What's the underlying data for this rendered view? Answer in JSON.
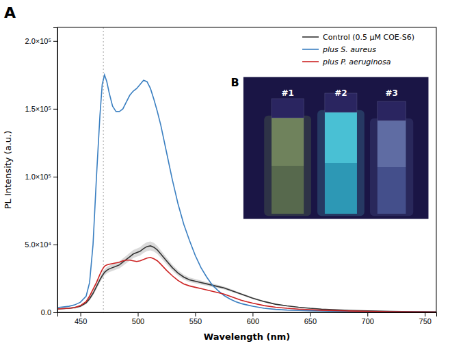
{
  "chart_data": {
    "type": "line",
    "xlabel": "Wavelength (nm)",
    "ylabel": "PL Intensity (a.u.)",
    "xlim": [
      430,
      760
    ],
    "ylim": [
      0,
      210000
    ],
    "xticks": [
      450,
      500,
      550,
      600,
      650,
      700,
      750
    ],
    "yticks": [
      {
        "value": 0,
        "label": "0.0"
      },
      {
        "value": 50000,
        "label": "5.0×10⁴"
      },
      {
        "value": 100000,
        "label": "1.0×10⁵"
      },
      {
        "value": 150000,
        "label": "1.5×10⁵"
      },
      {
        "value": 200000,
        "label": "2.0×10⁵"
      }
    ],
    "grid": false,
    "legend": "upper right",
    "vline_x": 470,
    "x": [
      430,
      440,
      445,
      450,
      455,
      458,
      461,
      464,
      467,
      469,
      471,
      473,
      475,
      478,
      481,
      484,
      487,
      490,
      493,
      496,
      499,
      502,
      505,
      508,
      511,
      514,
      517,
      520,
      525,
      530,
      535,
      540,
      545,
      550,
      555,
      560,
      565,
      570,
      575,
      580,
      585,
      590,
      595,
      600,
      610,
      620,
      630,
      640,
      650,
      660,
      680,
      700,
      720,
      740,
      760
    ],
    "series": [
      {
        "name": "Control (0.5 μM COE-S6)",
        "color": "#333333",
        "values": [
          2500,
          3000,
          3500,
          4500,
          7000,
          10000,
          14000,
          19000,
          24000,
          27000,
          29500,
          31000,
          32000,
          33000,
          34000,
          35000,
          37000,
          39000,
          41000,
          43000,
          44000,
          45000,
          47000,
          48500,
          49000,
          48000,
          46000,
          43000,
          38000,
          33000,
          29000,
          26000,
          24000,
          23000,
          22000,
          21000,
          20000,
          19000,
          18000,
          16500,
          15000,
          13500,
          12000,
          10500,
          8000,
          6000,
          4800,
          3800,
          3000,
          2400,
          1600,
          1100,
          750,
          500,
          300
        ],
        "errors": [
          500,
          600,
          700,
          800,
          1000,
          1200,
          1500,
          1800,
          2000,
          2200,
          2300,
          2400,
          2400,
          2500,
          2500,
          2600,
          2700,
          2800,
          2900,
          3000,
          3000,
          3100,
          3200,
          3300,
          3300,
          3200,
          3000,
          2800,
          2500,
          2200,
          2000,
          1800,
          1700,
          1600,
          1500,
          1400,
          1300,
          1200,
          1100,
          1000,
          900,
          800,
          700,
          600,
          500,
          400,
          300,
          250,
          200,
          150,
          100,
          80,
          60,
          40,
          20
        ]
      },
      {
        "name": "plus S. aureus",
        "color": "#3a7fc1",
        "values": [
          3500,
          4500,
          5500,
          7500,
          12000,
          22000,
          50000,
          100000,
          145000,
          168000,
          175000,
          170000,
          162000,
          152000,
          148000,
          148000,
          150000,
          155000,
          160000,
          163000,
          165000,
          168000,
          171000,
          170000,
          165000,
          157000,
          148000,
          138000,
          118000,
          98000,
          80000,
          65000,
          53000,
          42000,
          33000,
          26000,
          20000,
          16000,
          12500,
          10000,
          8000,
          6500,
          5500,
          4500,
          3000,
          2200,
          1700,
          1400,
          1200,
          1000,
          700,
          500,
          400,
          300,
          200
        ]
      },
      {
        "name": "plus P. aeruginosa",
        "color": "#cc2222",
        "values": [
          2500,
          3000,
          3500,
          5000,
          8000,
          12000,
          17000,
          22000,
          28000,
          31500,
          34000,
          35000,
          35500,
          36000,
          36500,
          37000,
          38000,
          38500,
          38500,
          38000,
          37500,
          38000,
          39000,
          40000,
          40500,
          39500,
          38000,
          35500,
          31000,
          27000,
          23500,
          21000,
          19500,
          18500,
          17500,
          16500,
          15500,
          14500,
          13500,
          12000,
          10500,
          9000,
          7800,
          6800,
          5000,
          3800,
          3000,
          2400,
          2000,
          1600,
          1100,
          750,
          500,
          350,
          200
        ]
      }
    ],
    "annotations": [
      {
        "text": "A"
      },
      {
        "text": "B"
      },
      {
        "text": "#1"
      },
      {
        "text": "#2"
      },
      {
        "text": "#3"
      }
    ]
  }
}
